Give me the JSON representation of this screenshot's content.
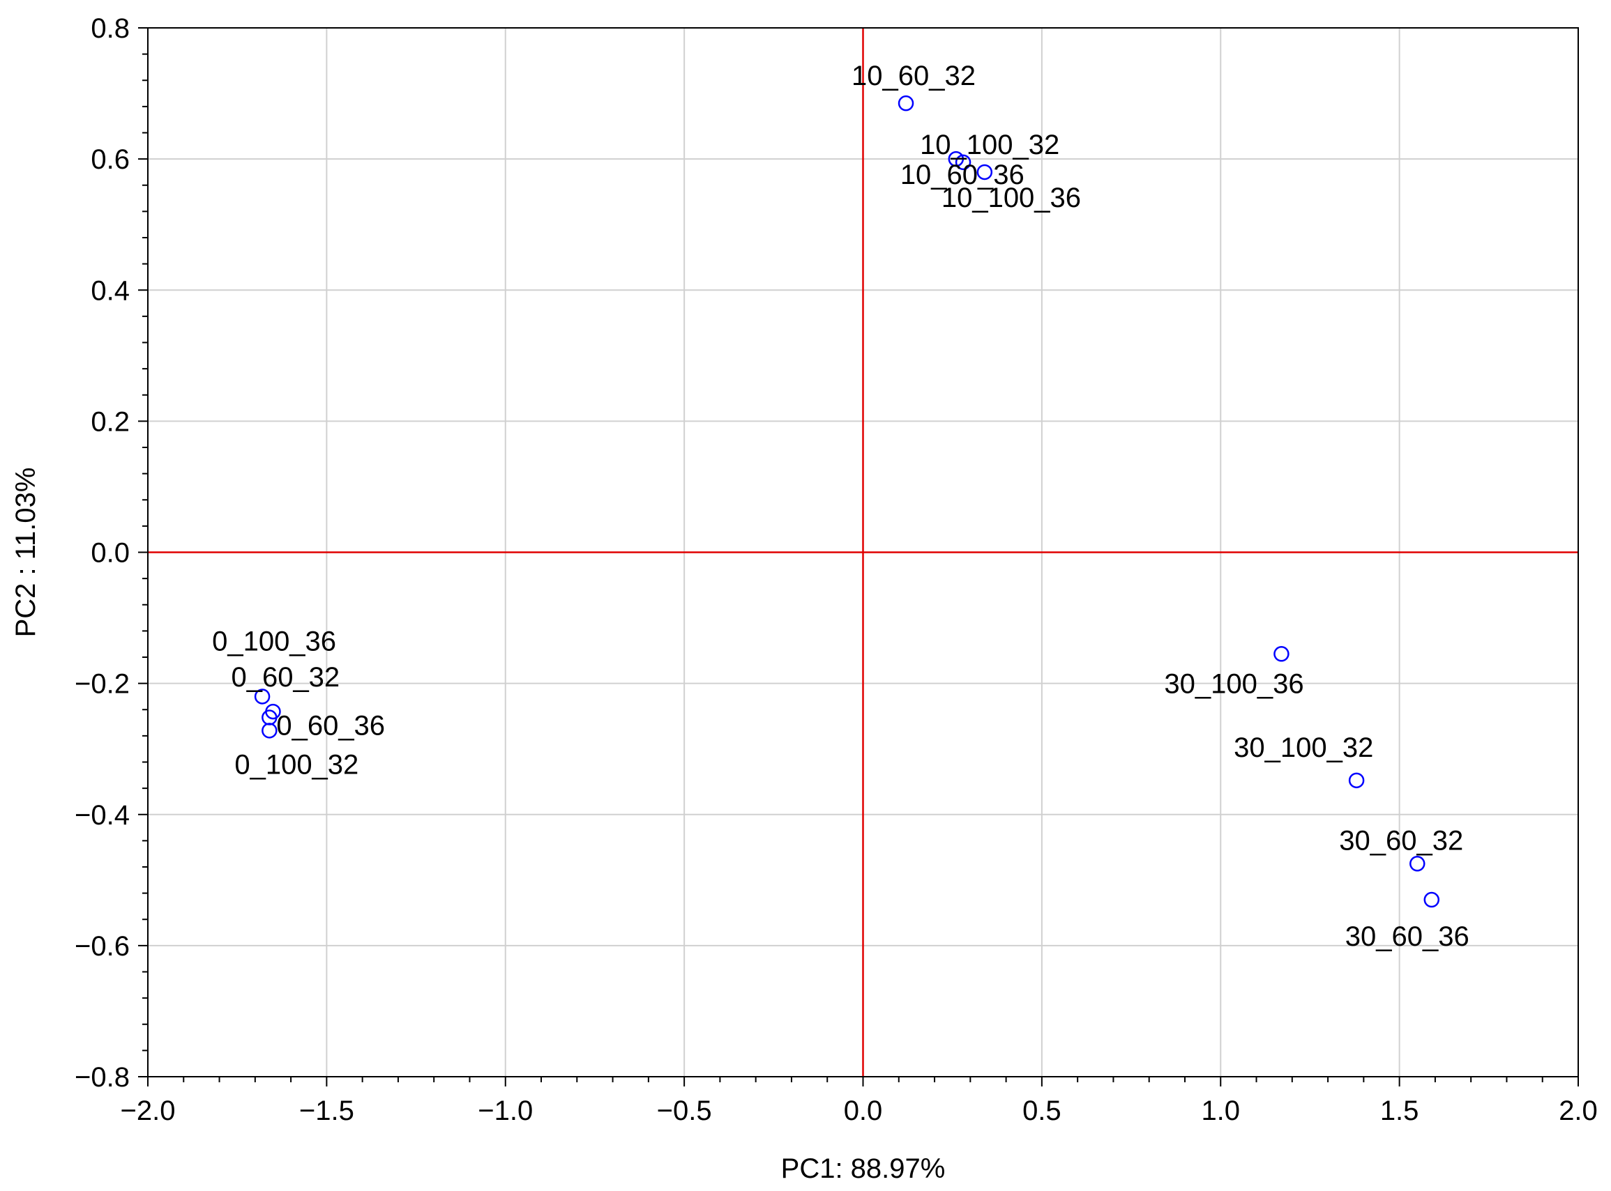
{
  "chart_data": {
    "type": "scatter",
    "xlabel": "PC1: 88.97%",
    "ylabel": "PC2 : 11.03%",
    "xlim": [
      -2.0,
      2.0
    ],
    "ylim": [
      -0.8,
      0.8
    ],
    "x_ticks": [
      -2.0,
      -1.5,
      -1.0,
      -0.5,
      0.0,
      0.5,
      1.0,
      1.5,
      2.0
    ],
    "y_ticks": [
      -0.8,
      -0.6,
      -0.4,
      -0.2,
      0.0,
      0.2,
      0.4,
      0.6,
      0.8
    ],
    "x_tick_labels": [
      "−2.0",
      "−1.5",
      "−1.0",
      "−0.5",
      "0.0",
      "0.5",
      "1.0",
      "1.5",
      "2.0"
    ],
    "y_tick_labels": [
      "−0.8",
      "−0.6",
      "−0.4",
      "−0.2",
      "0.0",
      "0.2",
      "0.4",
      "0.6",
      "0.8"
    ],
    "grid": true,
    "reference_lines": {
      "x": 0.0,
      "y": 0.0,
      "color": "#e00000"
    },
    "marker": {
      "shape": "circle-open",
      "color": "#0000ff"
    },
    "points": [
      {
        "label": "10_60_32",
        "x": 0.12,
        "y": 0.685
      },
      {
        "label": "10_60_36",
        "x": 0.26,
        "y": 0.6
      },
      {
        "label": "10_100_32",
        "x": 0.28,
        "y": 0.595
      },
      {
        "label": "10_100_36",
        "x": 0.34,
        "y": 0.58
      },
      {
        "label": "0_100_36",
        "x": -1.68,
        "y": -0.22
      },
      {
        "label": "0_60_32",
        "x": -1.65,
        "y": -0.243
      },
      {
        "label": "0_60_36",
        "x": -1.66,
        "y": -0.252
      },
      {
        "label": "0_100_32",
        "x": -1.66,
        "y": -0.272
      },
      {
        "label": "30_100_36",
        "x": 1.17,
        "y": -0.155
      },
      {
        "label": "30_100_32",
        "x": 1.38,
        "y": -0.348
      },
      {
        "label": "30_60_32",
        "x": 1.55,
        "y": -0.475
      },
      {
        "label": "30_60_36",
        "x": 1.59,
        "y": -0.53
      }
    ]
  }
}
